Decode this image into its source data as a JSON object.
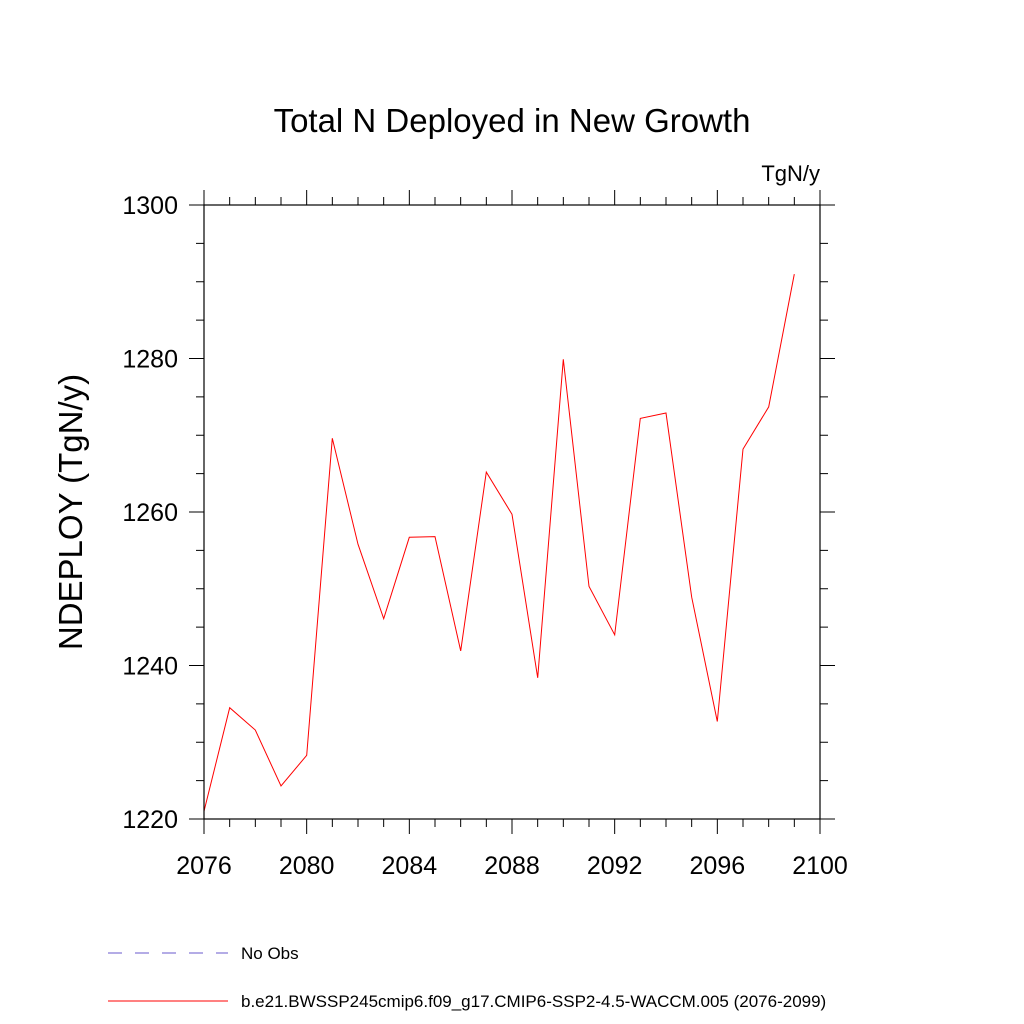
{
  "chart_data": {
    "type": "line",
    "title": "Total N Deployed in New Growth",
    "units": "TgN/y",
    "ylabel": "NDEPLOY  (TgN/y)",
    "xlabel": "",
    "xlim": [
      2076,
      2100
    ],
    "ylim": [
      1220,
      1300
    ],
    "x_ticks": [
      2076,
      2080,
      2084,
      2088,
      2092,
      2096,
      2100
    ],
    "y_ticks": [
      1220,
      1240,
      1260,
      1280,
      1300
    ],
    "x_minor_step": 1,
    "y_minor_step": 5,
    "grid": false,
    "series": [
      {
        "name": "b.e21.BWSSP245cmip6.f09_g17.CMIP6-SSP2-4.5-WACCM.005 (2076-2099)",
        "color": "#ff0000",
        "dash": "solid",
        "x": [
          2076,
          2077,
          2078,
          2079,
          2080,
          2081,
          2082,
          2083,
          2084,
          2085,
          2086,
          2087,
          2088,
          2089,
          2090,
          2091,
          2092,
          2093,
          2094,
          2095,
          2096,
          2097,
          2098,
          2099
        ],
        "y": [
          1221.0,
          1234.5,
          1231.6,
          1224.3,
          1228.3,
          1269.6,
          1255.8,
          1246.1,
          1256.7,
          1256.8,
          1241.9,
          1265.2,
          1259.7,
          1238.4,
          1279.9,
          1250.3,
          1244.0,
          1272.2,
          1272.9,
          1248.9,
          1232.7,
          1268.2,
          1273.7,
          1291.0
        ]
      }
    ],
    "legend": {
      "placement": "bottom-left",
      "entries": [
        {
          "label": "No Obs",
          "color": "#6a5acd",
          "dash": "dashed"
        },
        {
          "label": "b.e21.BWSSP245cmip6.f09_g17.CMIP6-SSP2-4.5-WACCM.005 (2076-2099)",
          "color": "#ff0000",
          "dash": "solid"
        }
      ]
    }
  }
}
